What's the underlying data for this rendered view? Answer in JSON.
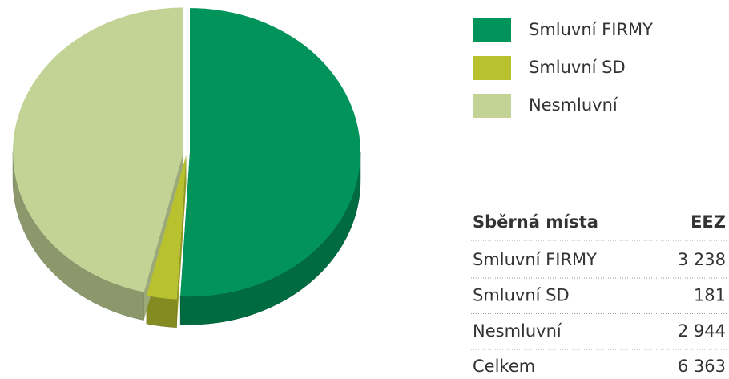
{
  "chart_data": {
    "type": "pie",
    "categories": [
      "Smluvní FIRMY",
      "Smluvní SD",
      "Nesmluvní"
    ],
    "values": [
      3238,
      181,
      2944
    ],
    "value_labels": [
      "3 238",
      "181",
      "2 944"
    ],
    "colors": [
      "#00945a",
      "#b8c22e",
      "#c3d396"
    ],
    "table": {
      "header": [
        "Sběrná místa",
        "EEZ"
      ],
      "total": {
        "label": "Celkem",
        "value": 6363,
        "value_label": "6 363"
      }
    }
  }
}
